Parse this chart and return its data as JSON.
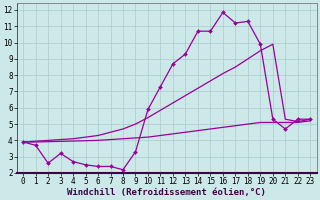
{
  "xlabel": "Windchill (Refroidissement éolien,°C)",
  "bg_color": "#cce8e8",
  "grid_color": "#aacccc",
  "line_color": "#990099",
  "xlim": [
    -0.5,
    23.5
  ],
  "ylim": [
    2,
    12.4
  ],
  "xticks": [
    0,
    1,
    2,
    3,
    4,
    5,
    6,
    7,
    8,
    9,
    10,
    11,
    12,
    13,
    14,
    15,
    16,
    17,
    18,
    19,
    20,
    21,
    22,
    23
  ],
  "yticks": [
    2,
    3,
    4,
    5,
    6,
    7,
    8,
    9,
    10,
    11,
    12
  ],
  "line1_x": [
    0,
    1,
    2,
    3,
    4,
    5,
    6,
    7,
    8,
    9,
    10,
    11,
    12,
    13,
    14,
    15,
    16,
    17,
    18,
    19,
    20,
    21,
    22,
    23
  ],
  "line1_y": [
    3.9,
    3.7,
    2.6,
    3.2,
    2.7,
    2.5,
    2.4,
    2.4,
    2.2,
    3.3,
    5.9,
    7.3,
    8.7,
    9.3,
    10.7,
    10.7,
    11.85,
    11.2,
    11.3,
    9.9,
    5.3,
    4.7,
    5.3,
    5.3
  ],
  "line2_x": [
    0,
    1,
    2,
    3,
    4,
    5,
    6,
    7,
    8,
    9,
    10,
    11,
    12,
    13,
    14,
    15,
    16,
    17,
    18,
    19,
    20,
    21,
    22,
    23
  ],
  "line2_y": [
    3.9,
    3.95,
    4.0,
    4.05,
    4.1,
    4.2,
    4.3,
    4.5,
    4.7,
    5.0,
    5.4,
    5.85,
    6.3,
    6.75,
    7.2,
    7.65,
    8.1,
    8.5,
    9.0,
    9.5,
    9.9,
    5.3,
    5.15,
    5.3
  ],
  "line3_x": [
    0,
    1,
    2,
    3,
    4,
    5,
    6,
    7,
    8,
    9,
    10,
    11,
    12,
    13,
    14,
    15,
    16,
    17,
    18,
    19,
    20,
    21,
    22,
    23
  ],
  "line3_y": [
    3.9,
    3.9,
    3.92,
    3.94,
    3.96,
    3.98,
    4.0,
    4.05,
    4.1,
    4.15,
    4.2,
    4.3,
    4.4,
    4.5,
    4.6,
    4.7,
    4.8,
    4.9,
    5.0,
    5.1,
    5.1,
    5.1,
    5.1,
    5.2
  ],
  "tick_fontsize": 5.5,
  "xlabel_fontsize": 6.5,
  "marker_size": 2.0,
  "line_width": 0.9
}
